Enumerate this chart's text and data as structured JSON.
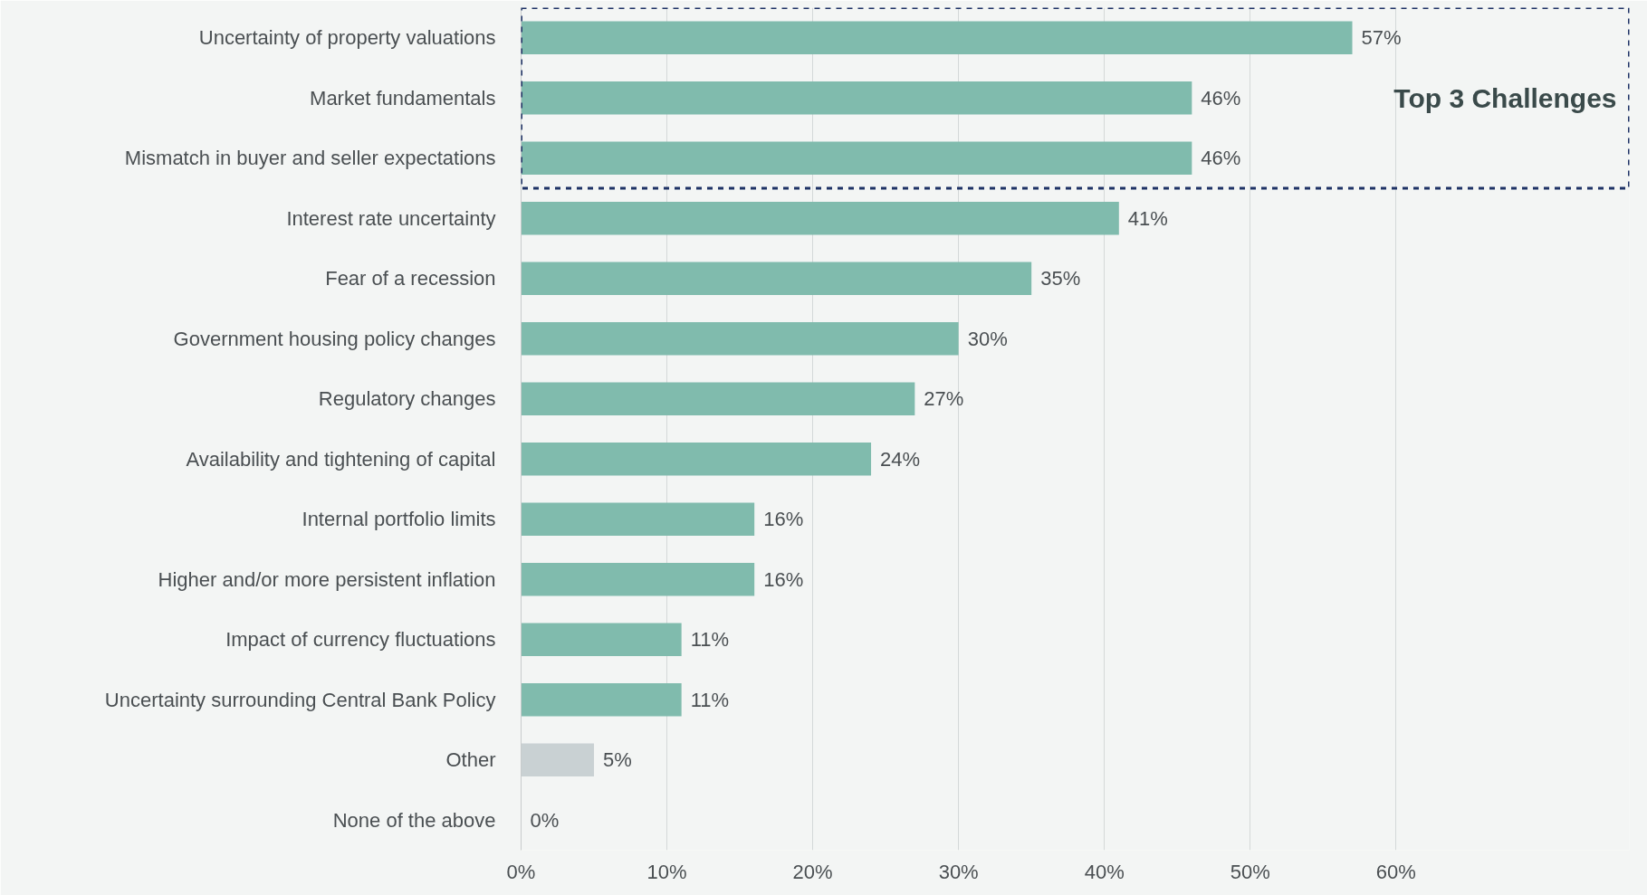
{
  "chart_data": {
    "type": "bar",
    "orientation": "horizontal",
    "categories": [
      "Uncertainty of property valuations",
      "Market fundamentals",
      "Mismatch in buyer and seller expectations",
      "Interest rate uncertainty",
      "Fear of a recession",
      "Government housing policy changes",
      "Regulatory changes",
      "Availability and tightening of capital",
      "Internal portfolio limits",
      "Higher and/or more persistent inflation",
      "Impact of currency fluctuations",
      "Uncertainty surrounding Central Bank Policy",
      "Other",
      "None of the above"
    ],
    "values": [
      57,
      46,
      46,
      41,
      35,
      30,
      27,
      24,
      16,
      16,
      11,
      11,
      5,
      0
    ],
    "colors": [
      "#80bbad",
      "#80bbad",
      "#80bbad",
      "#80bbad",
      "#80bbad",
      "#80bbad",
      "#80bbad",
      "#80bbad",
      "#80bbad",
      "#80bbad",
      "#80bbad",
      "#80bbad",
      "#c9d1d3",
      "#c9d1d3"
    ],
    "value_labels": [
      "57%",
      "46%",
      "46%",
      "41%",
      "35%",
      "30%",
      "27%",
      "24%",
      "16%",
      "16%",
      "11%",
      "11%",
      "5%",
      "0%"
    ],
    "xlim": [
      0,
      76
    ],
    "xticks": [
      {
        "value": 0,
        "label": "0%"
      },
      {
        "value": 10,
        "label": "10%"
      },
      {
        "value": 20,
        "label": "20%"
      },
      {
        "value": 30,
        "label": "30%"
      },
      {
        "value": 40,
        "label": "40%"
      },
      {
        "value": 50,
        "label": "50%"
      },
      {
        "value": 60,
        "label": "60%"
      }
    ],
    "grid": "x",
    "annotations": [
      "Top 3 Challenges"
    ]
  }
}
